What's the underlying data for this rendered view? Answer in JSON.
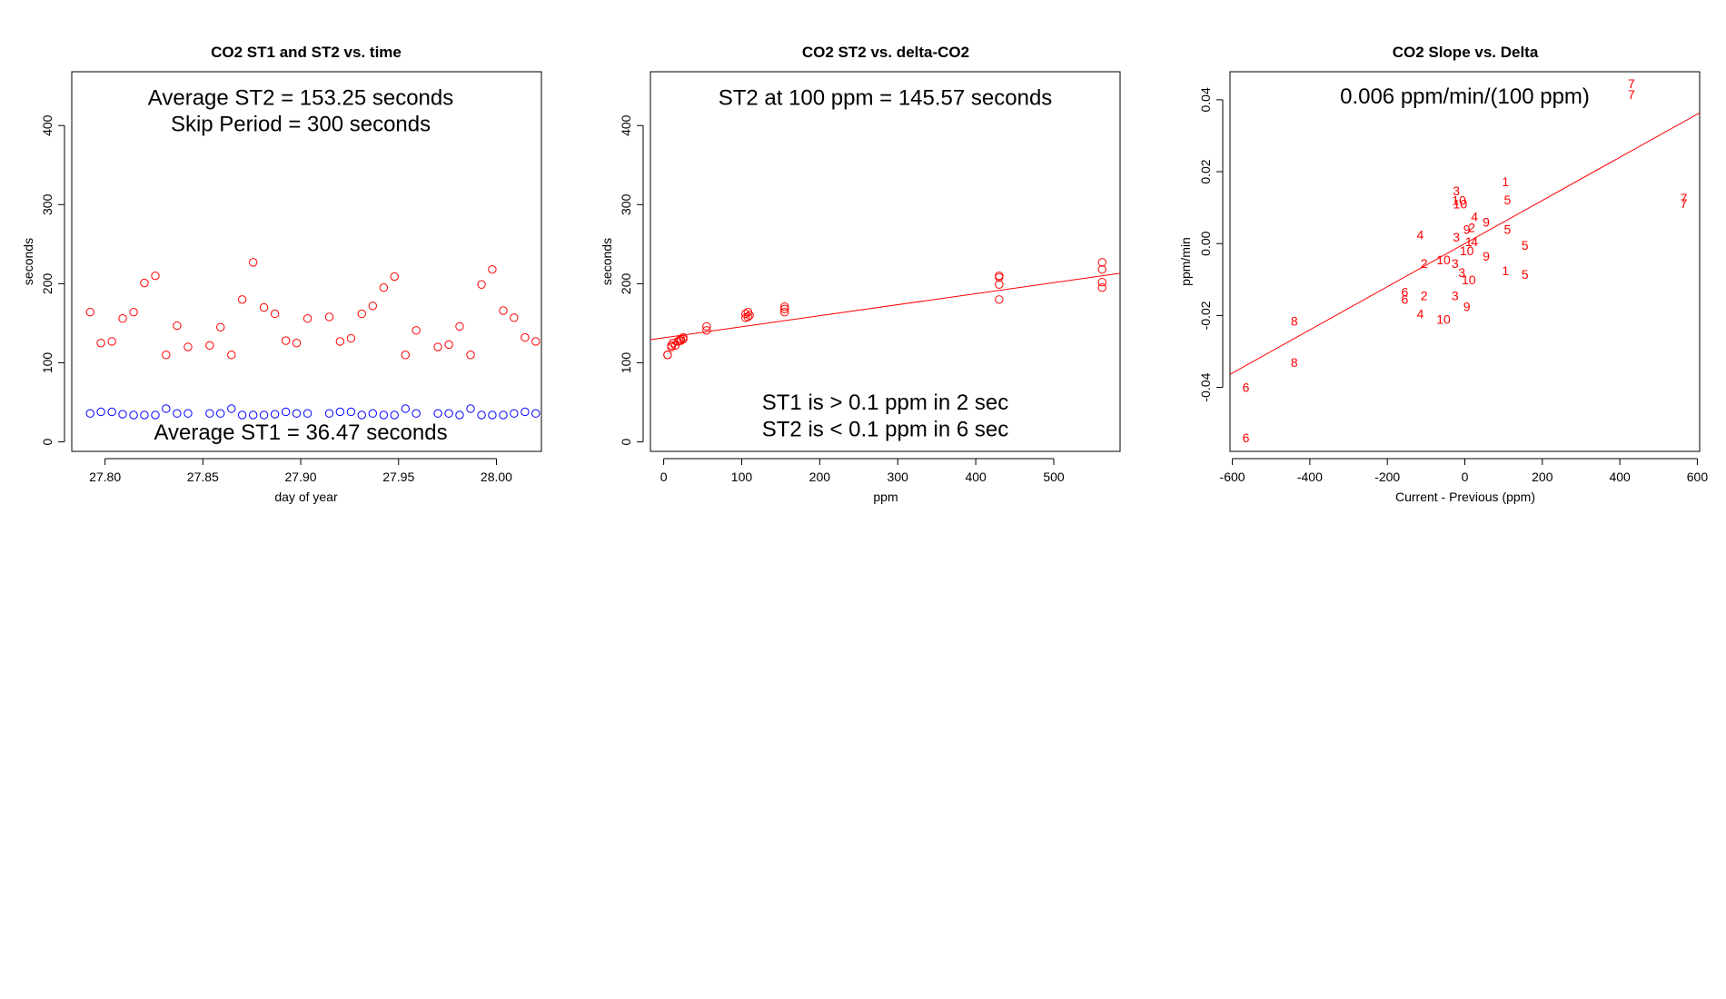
{
  "colors": {
    "st1": "#0000ff",
    "st2": "#ff0000",
    "fit": "#ff0000",
    "axis": "#000000"
  },
  "chart_data": [
    {
      "id": "p1",
      "type": "scatter",
      "title": "CO2 ST1 and ST2 vs. time",
      "xlabel": "day of year",
      "ylabel": "seconds",
      "xlim": [
        27.783,
        28.023
      ],
      "ylim": [
        -12,
        468
      ],
      "xticks": [
        27.8,
        27.85,
        27.9,
        27.95,
        28.0
      ],
      "xtick_labels": [
        "27.80",
        "27.85",
        "27.90",
        "27.95",
        "28.00"
      ],
      "yticks": [
        0,
        100,
        200,
        300,
        400
      ],
      "ytick_labels": [
        "0",
        "100",
        "200",
        "300",
        "400"
      ],
      "annotations": [
        {
          "text": "Average ST2 =  153.25  seconds",
          "x": 27.9,
          "y": 435
        },
        {
          "text": "Skip Period =  300  seconds",
          "x": 27.9,
          "y": 402
        },
        {
          "text": "Average ST1 =  36.47  seconds",
          "x": 27.9,
          "y": 12
        }
      ],
      "series": [
        {
          "name": "ST2",
          "color": "#ff0000",
          "x": [
            27.7924,
            27.7979,
            27.8035,
            27.809,
            27.8146,
            27.8201,
            27.8257,
            27.8312,
            27.8368,
            27.8424,
            27.8535,
            27.859,
            27.8646,
            27.8701,
            27.8757,
            27.8812,
            27.8868,
            27.8924,
            27.8979,
            27.9035,
            27.9146,
            27.9201,
            27.9257,
            27.9312,
            27.9368,
            27.9424,
            27.9479,
            27.9535,
            27.959,
            27.9701,
            27.9757,
            27.9812,
            27.9868,
            27.9924,
            27.9979,
            28.0035,
            28.009,
            28.0146,
            28.0201
          ],
          "y": [
            164,
            125,
            127,
            156,
            164,
            201,
            210,
            110,
            147,
            120,
            122,
            145,
            110,
            180,
            227,
            170,
            162,
            128,
            125,
            156,
            158,
            127,
            131,
            162,
            172,
            195,
            209,
            110,
            141,
            120,
            123,
            146,
            110,
            199,
            218,
            166,
            157,
            132,
            127
          ]
        },
        {
          "name": "ST1",
          "color": "#0000ff",
          "x": [
            27.7924,
            27.7979,
            27.8035,
            27.809,
            27.8146,
            27.8201,
            27.8257,
            27.8312,
            27.8368,
            27.8424,
            27.8535,
            27.859,
            27.8646,
            27.8701,
            27.8757,
            27.8812,
            27.8868,
            27.8924,
            27.8979,
            27.9035,
            27.9146,
            27.9201,
            27.9257,
            27.9312,
            27.9368,
            27.9424,
            27.9479,
            27.9535,
            27.959,
            27.9701,
            27.9757,
            27.9812,
            27.9868,
            27.9924,
            27.9979,
            28.0035,
            28.009,
            28.0146,
            28.0201
          ],
          "y": [
            36,
            38,
            38,
            35,
            34,
            34,
            34,
            42,
            36,
            36,
            36,
            36,
            42,
            34,
            34,
            34,
            35,
            38,
            36,
            36,
            36,
            38,
            38,
            34,
            36,
            34,
            34,
            42,
            36,
            36,
            36,
            34,
            42,
            34,
            34,
            34,
            36,
            38,
            36
          ]
        }
      ]
    },
    {
      "id": "p2",
      "type": "scatter",
      "title": "CO2 ST2 vs. delta-CO2",
      "xlabel": "ppm",
      "ylabel": "seconds",
      "xlim": [
        -17,
        585
      ],
      "ylim": [
        -12,
        468
      ],
      "xticks": [
        0,
        100,
        200,
        300,
        400,
        500
      ],
      "xtick_labels": [
        "0",
        "100",
        "200",
        "300",
        "400",
        "500"
      ],
      "yticks": [
        0,
        100,
        200,
        300,
        400
      ],
      "ytick_labels": [
        "0",
        "100",
        "200",
        "300",
        "400"
      ],
      "annotations": [
        {
          "text": "ST2 at 100 ppm =  145.57  seconds",
          "x": 284,
          "y": 435
        },
        {
          "text": "ST1 is > 0.1 ppm in 2 sec",
          "x": 284,
          "y": 50
        },
        {
          "text": "ST2 is < 0.1 ppm in 6 sec",
          "x": 284,
          "y": 16
        }
      ],
      "fit_line": {
        "color": "#ff0000",
        "intercept": 131.6,
        "slope": 0.1395,
        "x_range": [
          -17,
          585
        ]
      },
      "series": [
        {
          "name": "ST2",
          "color": "#ff0000",
          "x": [
            5,
            5,
            10,
            10,
            12,
            15,
            18,
            20,
            22,
            22,
            25,
            25,
            55,
            55,
            105,
            105,
            108,
            108,
            110,
            155,
            155,
            155,
            430,
            430,
            430,
            430,
            562,
            562,
            562,
            562
          ],
          "y": [
            110,
            110,
            120,
            122,
            125,
            122,
            127,
            128,
            130,
            128,
            132,
            130,
            141,
            146,
            157,
            162,
            158,
            164,
            160,
            164,
            168,
            171,
            180,
            199,
            208,
            210,
            195,
            202,
            218,
            227
          ]
        }
      ]
    },
    {
      "id": "p3",
      "type": "scatter",
      "title": "CO2 Slope vs. Delta",
      "xlabel": "Current - Previous (ppm)",
      "ylabel": "ppm/min",
      "xlim": [
        -606,
        606
      ],
      "ylim": [
        -0.0578,
        0.0478
      ],
      "xticks": [
        -600,
        -400,
        -200,
        0,
        200,
        400,
        600
      ],
      "xtick_labels": [
        "-600",
        "-400",
        "-200",
        "0",
        "200",
        "400",
        "600"
      ],
      "yticks": [
        -0.04,
        -0.02,
        0.0,
        0.02,
        0.04
      ],
      "ytick_labels": [
        "-0.04",
        "-0.02",
        "0.00",
        "0.02",
        "0.04"
      ],
      "annotations": [
        {
          "text": "0.006  ppm/min/(100 ppm)",
          "x": 0,
          "y": 0.041
        }
      ],
      "fit_line": {
        "color": "#ff0000",
        "intercept": 0.0,
        "slope": 6e-05,
        "x_range": [
          -606,
          606
        ]
      },
      "labels": [
        {
          "t": "7",
          "x": 430,
          "y": 0.0445
        },
        {
          "t": "7",
          "x": 430,
          "y": 0.0415
        },
        {
          "t": "7",
          "x": 565,
          "y": 0.0127
        },
        {
          "t": "7",
          "x": 565,
          "y": 0.0112
        },
        {
          "t": "1",
          "x": 105,
          "y": 0.0172
        },
        {
          "t": "5",
          "x": 110,
          "y": 0.0122
        },
        {
          "t": "3",
          "x": -22,
          "y": 0.0147
        },
        {
          "t": "10",
          "x": -15,
          "y": 0.012
        },
        {
          "t": "10",
          "x": -12,
          "y": 0.011
        },
        {
          "t": "4",
          "x": 25,
          "y": 0.0075
        },
        {
          "t": "9",
          "x": 55,
          "y": 0.006
        },
        {
          "t": "9",
          "x": 5,
          "y": 0.004
        },
        {
          "t": "2",
          "x": 18,
          "y": 0.0045
        },
        {
          "t": "4",
          "x": -115,
          "y": 0.0025
        },
        {
          "t": "3",
          "x": -22,
          "y": 0.0018
        },
        {
          "t": "5",
          "x": 110,
          "y": 0.004
        },
        {
          "t": "1",
          "x": 10,
          "y": 0.0005
        },
        {
          "t": "4",
          "x": 25,
          "y": 0.0005
        },
        {
          "t": "5",
          "x": 155,
          "y": -0.0005
        },
        {
          "t": "10",
          "x": 5,
          "y": -0.002
        },
        {
          "t": "9",
          "x": 55,
          "y": -0.0035
        },
        {
          "t": "10",
          "x": -55,
          "y": -0.0045
        },
        {
          "t": "2",
          "x": -105,
          "y": -0.0055
        },
        {
          "t": "3",
          "x": -25,
          "y": -0.0055
        },
        {
          "t": "3",
          "x": -8,
          "y": -0.008
        },
        {
          "t": "1",
          "x": 105,
          "y": -0.0075
        },
        {
          "t": "5",
          "x": 155,
          "y": -0.0085
        },
        {
          "t": "10",
          "x": 10,
          "y": -0.01
        },
        {
          "t": "6",
          "x": -155,
          "y": -0.0135
        },
        {
          "t": "6",
          "x": -155,
          "y": -0.0155
        },
        {
          "t": "2",
          "x": -105,
          "y": -0.0145
        },
        {
          "t": "3",
          "x": -25,
          "y": -0.0145
        },
        {
          "t": "9",
          "x": 5,
          "y": -0.0175
        },
        {
          "t": "4",
          "x": -115,
          "y": -0.0195
        },
        {
          "t": "10",
          "x": -55,
          "y": -0.021
        },
        {
          "t": "8",
          "x": -440,
          "y": -0.0215
        },
        {
          "t": "8",
          "x": -440,
          "y": -0.033
        },
        {
          "t": "6",
          "x": -565,
          "y": -0.04
        },
        {
          "t": "6",
          "x": -565,
          "y": -0.054
        }
      ]
    }
  ]
}
